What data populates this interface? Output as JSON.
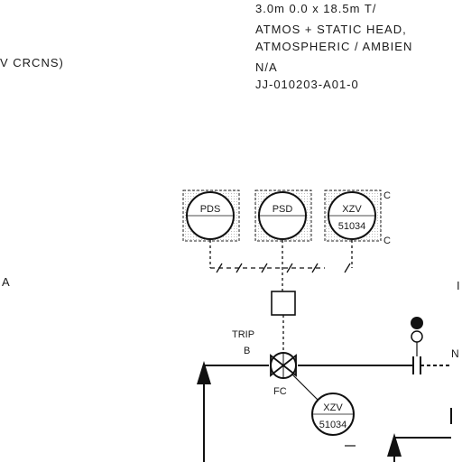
{
  "header": {
    "lines": [
      "3.0m  0.0  x  18.5m  T/",
      "ATMOS  +  STATIC HEAD,",
      "ATMOSPHERIC  /  AMBIEN",
      "N/A",
      "JJ-010203-A01-0"
    ],
    "left_label": "V CRCNS)"
  },
  "instruments": {
    "pds": "PDS",
    "psd": "PSD",
    "xzv_top_1": "XZV",
    "xzv_top_2": "51034",
    "xzv_bottom_1": "XZV",
    "xzv_bottom_2": "51034"
  },
  "labels": {
    "trip": "TRIP",
    "b": "B",
    "fc": "FC",
    "side_a": "A",
    "arrow_n": "N",
    "c_upper": "C",
    "c_lower": "C",
    "edge_right": "I"
  },
  "colors": {
    "line": "#111111",
    "background": "#ffffff"
  }
}
